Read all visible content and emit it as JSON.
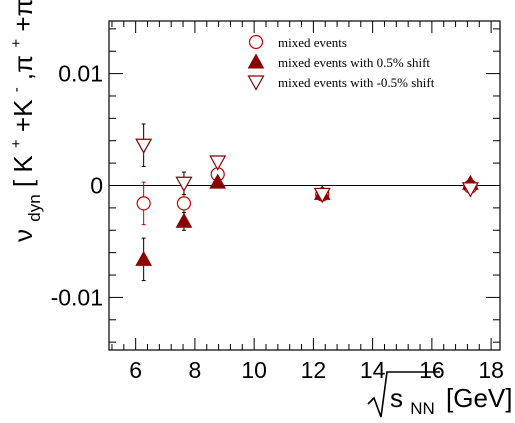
{
  "chart_data": {
    "type": "scatter",
    "title": "",
    "xlabel": "[GeV]",
    "xlabel_sqrt": "s",
    "xlabel_sub": "NN",
    "ylabel_nu": "ν",
    "ylabel_sub": "dyn",
    "ylabel_bracket_open": "[",
    "ylabel_K": "K",
    "ylabel_plus1": "+",
    "ylabel_Kminus": "+K",
    "ylabel_minus1": "-",
    "ylabel_comma_pi": ",π",
    "ylabel_plus2": "+",
    "ylabel_pi2": "+π",
    "ylabel_minus2": "-",
    "ylabel_bracket_close": "]",
    "xlim": [
      5.1,
      18.3
    ],
    "ylim": [
      -0.0147,
      0.0147
    ],
    "x_ticks": [
      6,
      8,
      10,
      12,
      14,
      16,
      18
    ],
    "y_ticks": [
      -0.01,
      0,
      0.01
    ],
    "y_tick_labels": [
      "-0.01",
      "0",
      "0.01"
    ],
    "grid": false,
    "legend_position": "top-right",
    "series": [
      {
        "name": "mixed events",
        "marker": "open-circle",
        "color": "#cc0000",
        "points": [
          {
            "x": 6.27,
            "y": -0.0016,
            "err": 0.0019
          },
          {
            "x": 7.63,
            "y": -0.0016,
            "err": 0.0019
          },
          {
            "x": 8.77,
            "y": 0.001,
            "err": 0.0004
          },
          {
            "x": 12.3,
            "y": -0.0008,
            "err": 0.0003
          },
          {
            "x": 17.3,
            "y": -0.0001,
            "err": 0.0002
          }
        ]
      },
      {
        "name": "mixed events with 0.5% shift",
        "marker": "filled-triangle-up",
        "color": "#8b0000",
        "points": [
          {
            "x": 6.27,
            "y": -0.0066,
            "err": 0.0019
          },
          {
            "x": 7.63,
            "y": -0.0032,
            "err": 0.0008
          },
          {
            "x": 8.77,
            "y": 0.0003,
            "err": 0.0004
          },
          {
            "x": 12.3,
            "y": -0.0007,
            "err": 0.0003
          },
          {
            "x": 17.3,
            "y": 0.0002,
            "err": 0.0002
          }
        ]
      },
      {
        "name": "mixed events with -0.5% shift",
        "marker": "open-triangle-down",
        "color": "#8b0000",
        "points": [
          {
            "x": 6.27,
            "y": 0.0036,
            "err": 0.0019
          },
          {
            "x": 7.63,
            "y": 0.0002,
            "err": 0.001
          },
          {
            "x": 8.77,
            "y": 0.0021,
            "err": 0.0004
          },
          {
            "x": 12.3,
            "y": -0.0008,
            "err": 0.0003
          },
          {
            "x": 17.3,
            "y": -0.0003,
            "err": 0.0002
          }
        ]
      }
    ]
  }
}
